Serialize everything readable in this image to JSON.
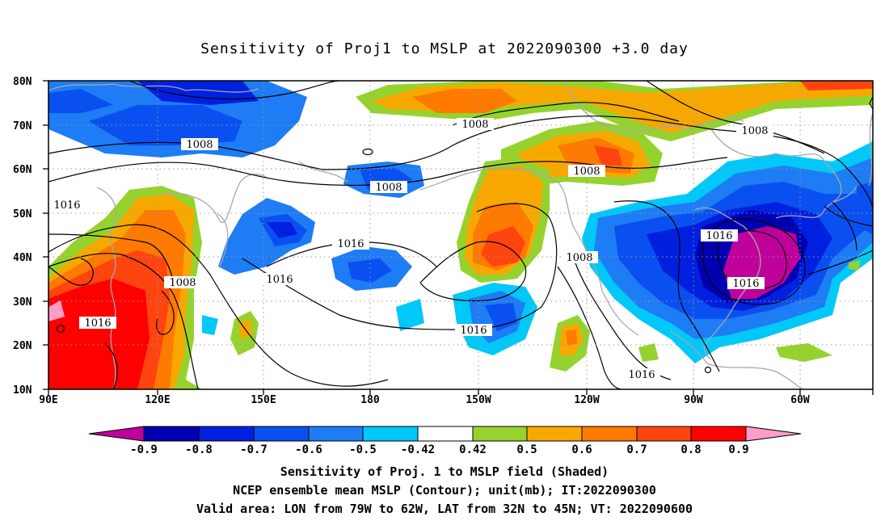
{
  "title": "Sensitivity of Proj1 to MSLP at 2022090300 +3.0 day",
  "lat_labels": [
    "80N",
    "70N",
    "60N",
    "50N",
    "40N",
    "30N",
    "20N",
    "10N"
  ],
  "lon_labels": [
    "90E",
    "120E",
    "150E",
    "180",
    "150W",
    "120W",
    "90W",
    "60W"
  ],
  "contour_labels": [
    {
      "text": "1008"
    },
    {
      "text": "1008"
    },
    {
      "text": "1008"
    },
    {
      "text": "1008"
    },
    {
      "text": "1008"
    },
    {
      "text": "1008"
    },
    {
      "text": "1008"
    },
    {
      "text": "1016"
    },
    {
      "text": "1016"
    },
    {
      "text": "1016"
    },
    {
      "text": "1016"
    },
    {
      "text": "1016"
    },
    {
      "text": "1016"
    },
    {
      "text": "1016"
    },
    {
      "text": "1016"
    }
  ],
  "colorbar": {
    "labels": [
      "-0.9",
      "-0.8",
      "-0.7",
      "-0.6",
      "-0.5",
      "-0.42",
      "0.42",
      "0.5",
      "0.6",
      "0.7",
      "0.8",
      "0.9"
    ],
    "colors": [
      "#c0009a",
      "#0000b0",
      "#0020e0",
      "#0a50f0",
      "#1e7cf5",
      "#00c8f8",
      "#ffffff",
      "#96d22e",
      "#f7a800",
      "#ff7a00",
      "#ff4410",
      "#ff0000",
      "#ff9cc8"
    ]
  },
  "captions": {
    "line1": "Sensitivity of Proj. 1 to MSLP field (Shaded)",
    "line2": "NCEP ensemble mean MSLP (Contour); unit(mb); IT:2022090300",
    "line3": "Valid area: LON from 79W to 62W, LAT from 32N to 45N; VT: 2022090600"
  }
}
